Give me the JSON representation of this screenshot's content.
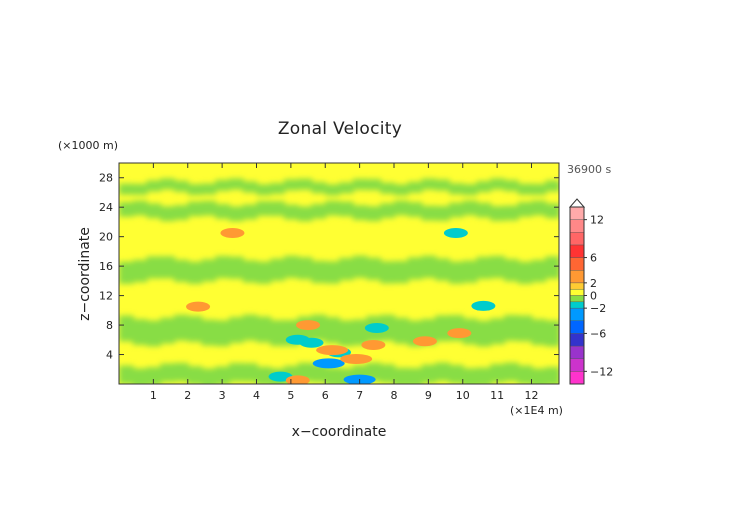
{
  "chart_data": {
    "type": "heatmap",
    "title": "Zonal Velocity",
    "xlabel": "x−coordinate",
    "ylabel": "z−coordinate",
    "x_unit": "(×1E4 m)",
    "y_unit": "(×1000 m)",
    "time_label": "36900 s",
    "xlim": [
      0,
      12.8
    ],
    "ylim": [
      0,
      30
    ],
    "x_ticks": [
      "1",
      "2",
      "3",
      "4",
      "5",
      "6",
      "7",
      "8",
      "9",
      "10",
      "11",
      "12"
    ],
    "y_ticks": [
      "4",
      "8",
      "12",
      "16",
      "20",
      "24",
      "28"
    ],
    "colorbar": {
      "ticks": [
        "12",
        "6",
        "2",
        "0",
        "−2",
        "−6",
        "−12"
      ],
      "levels": [
        {
          "lo": -14,
          "hi": -12,
          "color": "#ff33cc"
        },
        {
          "lo": -12,
          "hi": -10,
          "color": "#cc33cc"
        },
        {
          "lo": -10,
          "hi": -8,
          "color": "#9933cc"
        },
        {
          "lo": -8,
          "hi": -6,
          "color": "#3333cc"
        },
        {
          "lo": -6,
          "hi": -4,
          "color": "#0066ff"
        },
        {
          "lo": -4,
          "hi": -2,
          "color": "#0099ff"
        },
        {
          "lo": -2,
          "hi": -1,
          "color": "#00cccc"
        },
        {
          "lo": -1,
          "hi": 0,
          "color": "#88dd44"
        },
        {
          "lo": 0,
          "hi": 1,
          "color": "#ffff33"
        },
        {
          "lo": 1,
          "hi": 2,
          "color": "#ffcc33"
        },
        {
          "lo": 2,
          "hi": 4,
          "color": "#ff9933"
        },
        {
          "lo": 4,
          "hi": 6,
          "color": "#ff6633"
        },
        {
          "lo": 6,
          "hi": 8,
          "color": "#ff3333"
        },
        {
          "lo": 8,
          "hi": 10,
          "color": "#ff6666"
        },
        {
          "lo": 10,
          "hi": 12,
          "color": "#ff8888"
        },
        {
          "lo": 12,
          "hi": 14,
          "color": "#ffaaaa"
        }
      ]
    },
    "field": {
      "background": "#ffff33",
      "negative_bands": [
        {
          "z": [
            0,
            2.5
          ]
        },
        {
          "z": [
            5.5,
            9
          ]
        },
        {
          "z": [
            14,
            17
          ]
        },
        {
          "z": [
            22.5,
            24.5
          ]
        },
        {
          "z": [
            26,
            27.5
          ]
        }
      ],
      "anomalies": [
        {
          "x": 5.2,
          "z": 6.0,
          "value": -2
        },
        {
          "x": 5.6,
          "z": 5.6,
          "value": -2
        },
        {
          "x": 6.1,
          "z": 2.8,
          "value": -3
        },
        {
          "x": 6.4,
          "z": 4.3,
          "value": -2
        },
        {
          "x": 7.0,
          "z": 0.6,
          "value": -3
        },
        {
          "x": 4.7,
          "z": 1.0,
          "value": -2
        },
        {
          "x": 7.5,
          "z": 7.6,
          "value": -2
        },
        {
          "x": 5.5,
          "z": 8.0,
          "value": 2
        },
        {
          "x": 6.2,
          "z": 4.6,
          "value": 3
        },
        {
          "x": 6.9,
          "z": 3.4,
          "value": 3
        },
        {
          "x": 7.4,
          "z": 5.3,
          "value": 2
        },
        {
          "x": 8.9,
          "z": 5.8,
          "value": 2
        },
        {
          "x": 5.2,
          "z": 0.5,
          "value": 2
        },
        {
          "x": 2.3,
          "z": 10.5,
          "value": 2
        },
        {
          "x": 9.9,
          "z": 6.9,
          "value": 2
        },
        {
          "x": 3.3,
          "z": 20.5,
          "value": 2
        },
        {
          "x": 10.6,
          "z": 10.6,
          "value": -2
        },
        {
          "x": 9.8,
          "z": 20.5,
          "value": -2
        }
      ]
    }
  }
}
